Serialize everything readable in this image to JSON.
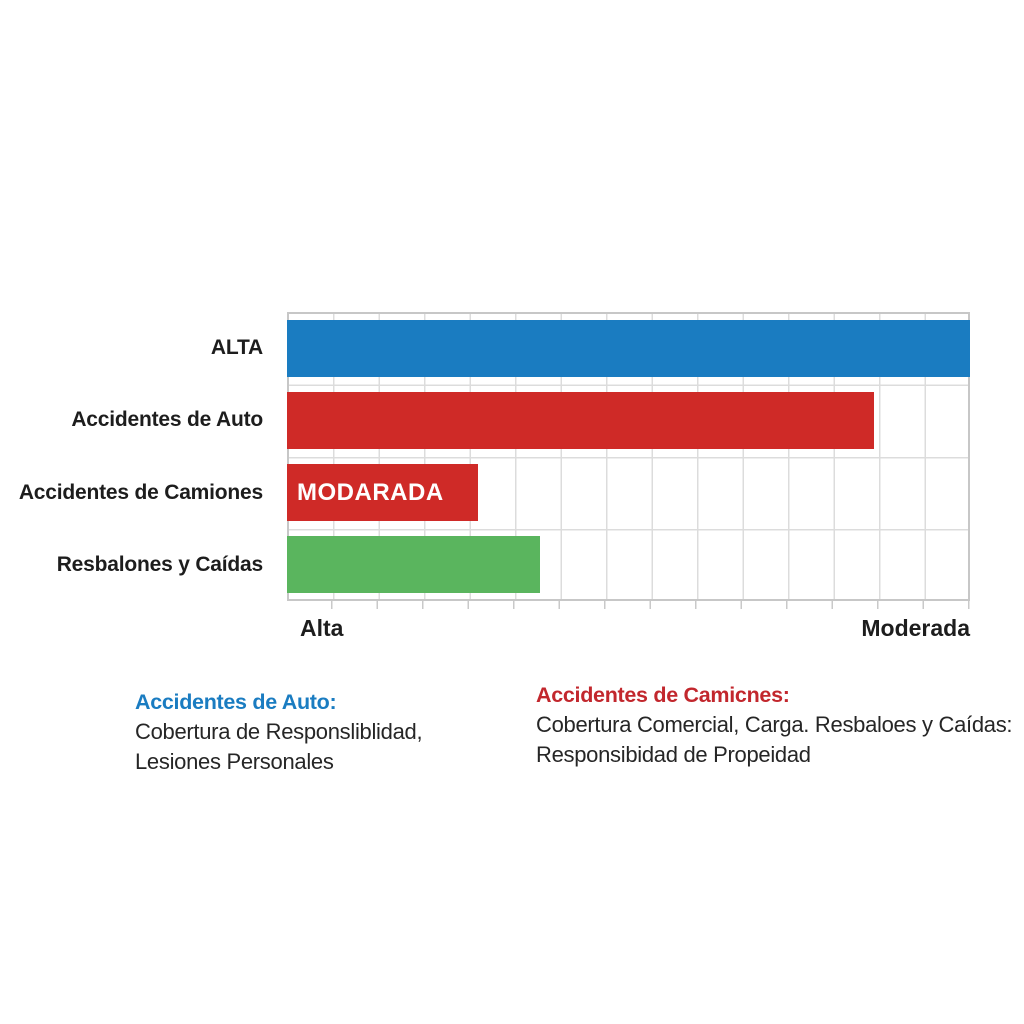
{
  "chart_data": {
    "type": "bar",
    "orientation": "horizontal",
    "categories": [
      "ALTA",
      "Accidentes de Auto",
      "Accidentes de Camiones",
      "Resbalones y Caídas"
    ],
    "values_pct": [
      102,
      86,
      28,
      37
    ],
    "bar_colors": [
      "#1a7cc1",
      "#cf2a27",
      "#cf2a27",
      "#5ab55e"
    ],
    "bar_inner_labels": [
      "",
      "",
      "MODARADA",
      ""
    ],
    "xlabel_left": "Alta",
    "xlabel_right": "Moderada",
    "grid": "on",
    "legend_position": "none",
    "title": ""
  },
  "annotations": {
    "left": {
      "heading": "Accidentes de Auto:",
      "lines": [
        "Cobertura de Responsliblidad,",
        "Lesiones Personales"
      ]
    },
    "right": {
      "heading": "Accidentes de Camicnes:",
      "lines": [
        "Cobertura Comercial, Carga. Resbaloes y Caídas:",
        "Responsibidad de Propeidad"
      ]
    }
  },
  "colors": {
    "bar_blue": "#1a7cc1",
    "bar_red": "#cf2a27",
    "bar_green": "#5ab55e",
    "heading_blue": "#1a7cc1",
    "heading_red": "#c2272d",
    "text": "#1d1d1d",
    "grid_line": "#dcdcdc",
    "plot_border": "#c7c7c7",
    "bar_inner_text": "#ffffff",
    "background": "#ffffff"
  }
}
